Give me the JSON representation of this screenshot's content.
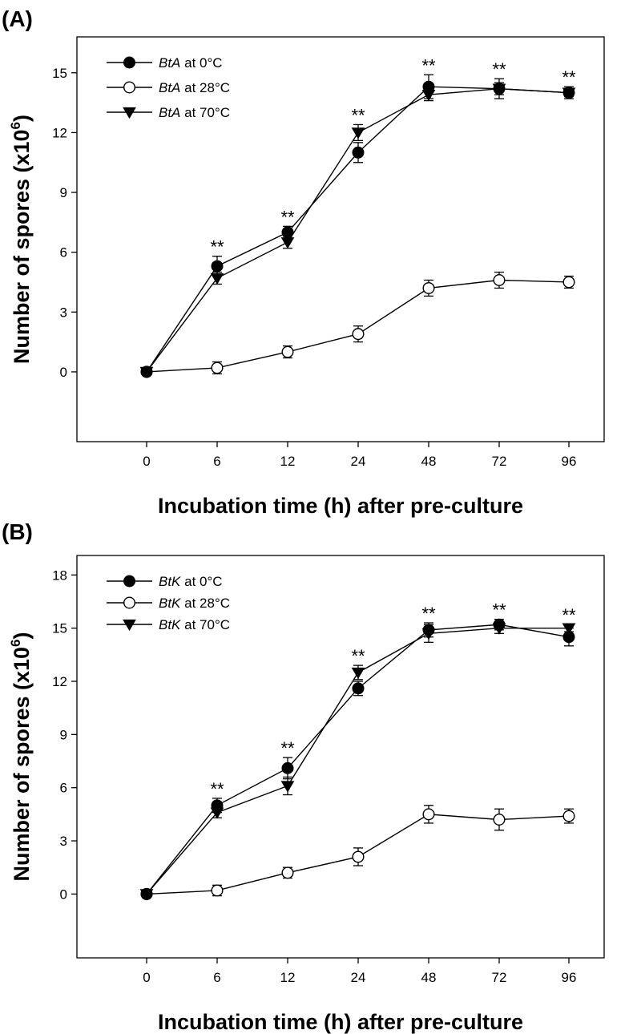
{
  "chart_data": [
    {
      "type": "line",
      "panel_label": "(A)",
      "xlabel": "Incubation time (h) after pre-culture",
      "ylabel": "Number of spores (x10^6)",
      "ylabel_base": "Number of spores (x10",
      "ylabel_exp": "6",
      "ylabel_close": ")",
      "categories": [
        "0",
        "6",
        "12",
        "24",
        "48",
        "72",
        "96"
      ],
      "ylim": [
        -3.5,
        16.8
      ],
      "yticks": [
        0,
        3,
        6,
        9,
        12,
        15
      ],
      "grid": false,
      "legend_position": "top-left",
      "series": [
        {
          "name": "BtA at 0°C",
          "strain": "BtA",
          "temp": " at 0°C",
          "marker": "circle-filled",
          "values": [
            0.0,
            5.3,
            7.0,
            11.0,
            14.3,
            14.2,
            14.0
          ],
          "errors": [
            0.1,
            0.5,
            0.3,
            0.5,
            0.6,
            0.5,
            0.3
          ]
        },
        {
          "name": "BtA at 28°C",
          "strain": "BtA",
          "temp": " at 28°C",
          "marker": "circle-open",
          "values": [
            0.0,
            0.2,
            1.0,
            1.9,
            4.2,
            4.6,
            4.5
          ],
          "errors": [
            0.1,
            0.3,
            0.3,
            0.4,
            0.4,
            0.4,
            0.3
          ]
        },
        {
          "name": "BtA at 70°C",
          "strain": "BtA",
          "temp": " at 70°C",
          "marker": "triangle-down-filled",
          "values": [
            0.0,
            4.7,
            6.5,
            12.0,
            13.9,
            14.2,
            14.0
          ],
          "errors": [
            0.1,
            0.3,
            0.3,
            0.4,
            0.3,
            0.3,
            0.2
          ]
        }
      ],
      "annotations": [
        {
          "category": "6",
          "text": "**"
        },
        {
          "category": "12",
          "text": "**"
        },
        {
          "category": "24",
          "text": "**"
        },
        {
          "category": "48",
          "text": "**"
        },
        {
          "category": "72",
          "text": "**"
        },
        {
          "category": "96",
          "text": "**"
        }
      ]
    },
    {
      "type": "line",
      "panel_label": "(B)",
      "xlabel": "Incubation time (h) after pre-culture",
      "ylabel": "Number of spores (x10^6)",
      "ylabel_base": "Number of spores (x10",
      "ylabel_exp": "6",
      "ylabel_close": ")",
      "categories": [
        "0",
        "6",
        "12",
        "24",
        "48",
        "72",
        "96"
      ],
      "ylim": [
        -3.6,
        19.1
      ],
      "yticks": [
        0,
        3,
        6,
        9,
        12,
        15,
        18
      ],
      "grid": false,
      "legend_position": "top-left",
      "series": [
        {
          "name": "BtK at 0°C",
          "strain": "BtK",
          "temp": " at 0°C",
          "marker": "circle-filled",
          "values": [
            0.0,
            5.0,
            7.1,
            11.6,
            14.9,
            15.2,
            14.5
          ],
          "errors": [
            0.1,
            0.4,
            0.6,
            0.4,
            0.4,
            0.3,
            0.5
          ]
        },
        {
          "name": "BtK at 28°C",
          "strain": "BtK",
          "temp": " at 28°C",
          "marker": "circle-open",
          "values": [
            0.0,
            0.2,
            1.2,
            2.1,
            4.5,
            4.2,
            4.4
          ],
          "errors": [
            0.1,
            0.3,
            0.3,
            0.5,
            0.5,
            0.6,
            0.4
          ]
        },
        {
          "name": "BtK at 70°C",
          "strain": "BtK",
          "temp": " at 70°C",
          "marker": "triangle-down-filled",
          "values": [
            0.0,
            4.6,
            6.1,
            12.5,
            14.7,
            15.0,
            15.0
          ],
          "errors": [
            0.1,
            0.3,
            0.5,
            0.4,
            0.5,
            0.3,
            0.2
          ]
        }
      ],
      "annotations": [
        {
          "category": "6",
          "text": "**"
        },
        {
          "category": "12",
          "text": "**"
        },
        {
          "category": "24",
          "text": "**"
        },
        {
          "category": "48",
          "text": "**"
        },
        {
          "category": "72",
          "text": "**"
        },
        {
          "category": "96",
          "text": "**"
        }
      ]
    }
  ]
}
